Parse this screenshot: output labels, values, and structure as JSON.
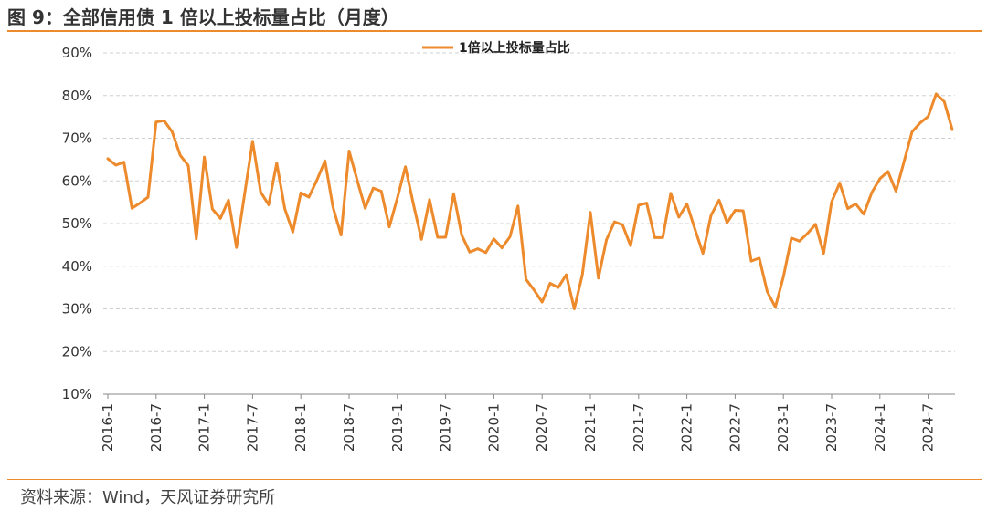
{
  "figure": {
    "title": "图 9：全部信用债 1 倍以上投标量占比（月度）",
    "source": "资料来源：Wind，天风证券研究所",
    "accent_color": "#ED8A2C"
  },
  "chart_data": {
    "type": "line",
    "title": "",
    "xlabel": "",
    "ylabel": "",
    "ylim": [
      10,
      90
    ],
    "y_ticks": [
      "10%",
      "20%",
      "30%",
      "40%",
      "50%",
      "60%",
      "70%",
      "80%",
      "90%"
    ],
    "x_tick_labels": [
      "2016-1",
      "2016-7",
      "2017-1",
      "2017-7",
      "2018-1",
      "2018-7",
      "2019-1",
      "2019-7",
      "2020-1",
      "2020-7",
      "2021-1",
      "2021-7",
      "2022-1",
      "2022-7",
      "2023-1",
      "2023-7",
      "2024-1",
      "2024-7"
    ],
    "legend_position": "top-center",
    "grid": true,
    "series": [
      {
        "name": "1倍以上投标量占比",
        "color": "#ED8A2C",
        "x": [
          "2016-1",
          "2016-2",
          "2016-3",
          "2016-4",
          "2016-5",
          "2016-6",
          "2016-7",
          "2016-8",
          "2016-9",
          "2016-10",
          "2016-11",
          "2016-12",
          "2017-1",
          "2017-2",
          "2017-3",
          "2017-4",
          "2017-5",
          "2017-6",
          "2017-7",
          "2017-8",
          "2017-9",
          "2017-10",
          "2017-11",
          "2017-12",
          "2018-1",
          "2018-2",
          "2018-3",
          "2018-4",
          "2018-5",
          "2018-6",
          "2018-7",
          "2018-8",
          "2018-9",
          "2018-10",
          "2018-11",
          "2018-12",
          "2019-1",
          "2019-2",
          "2019-3",
          "2019-4",
          "2019-5",
          "2019-6",
          "2019-7",
          "2019-8",
          "2019-9",
          "2019-10",
          "2019-11",
          "2019-12",
          "2020-1",
          "2020-2",
          "2020-3",
          "2020-4",
          "2020-5",
          "2020-6",
          "2020-7",
          "2020-8",
          "2020-9",
          "2020-10",
          "2020-11",
          "2020-12",
          "2021-1",
          "2021-2",
          "2021-3",
          "2021-4",
          "2021-5",
          "2021-6",
          "2021-7",
          "2021-8",
          "2021-9",
          "2021-10",
          "2021-11",
          "2021-12",
          "2022-1",
          "2022-2",
          "2022-3",
          "2022-4",
          "2022-5",
          "2022-6",
          "2022-7",
          "2022-8",
          "2022-9",
          "2022-10",
          "2022-11",
          "2022-12",
          "2023-1",
          "2023-2",
          "2023-3",
          "2023-4",
          "2023-5",
          "2023-6",
          "2023-7",
          "2023-8",
          "2023-9",
          "2023-10",
          "2023-11",
          "2023-12",
          "2024-1",
          "2024-2",
          "2024-3",
          "2024-4",
          "2024-5",
          "2024-6",
          "2024-7",
          "2024-8",
          "2024-9",
          "2024-10"
        ],
        "values": [
          65.2,
          63.7,
          64.4,
          53.6,
          54.8,
          56.2,
          73.8,
          74.1,
          71.5,
          66.0,
          63.6,
          46.4,
          65.6,
          53.4,
          51.2,
          55.5,
          44.4,
          56.8,
          69.3,
          57.4,
          54.4,
          64.2,
          53.5,
          48.0,
          57.2,
          56.2,
          60.2,
          64.7,
          53.8,
          47.3,
          67.0,
          60.2,
          53.6,
          58.3,
          57.6,
          49.2,
          56.0,
          63.3,
          54.5,
          46.3,
          55.6,
          46.8,
          46.8,
          57.0,
          47.3,
          43.3,
          44.1,
          43.2,
          46.4,
          44.3,
          46.9,
          54.1,
          36.9,
          34.4,
          31.6,
          36.0,
          35.0,
          38.0,
          30.0,
          38.0,
          52.6,
          37.2,
          46.2,
          50.4,
          49.7,
          44.8,
          54.3,
          54.8,
          46.7,
          46.7,
          57.1,
          51.5,
          54.6,
          48.7,
          43.0,
          51.9,
          55.5,
          50.2,
          53.1,
          53.0,
          41.2,
          41.9,
          34.0,
          30.4,
          37.5,
          46.6,
          45.9,
          47.7,
          49.8,
          43.0,
          55.1,
          59.5,
          53.5,
          54.6,
          52.2,
          57.3,
          60.5,
          62.2,
          57.6,
          64.5,
          71.5,
          73.6,
          75.1,
          80.4,
          78.6,
          72.0
        ]
      }
    ]
  }
}
